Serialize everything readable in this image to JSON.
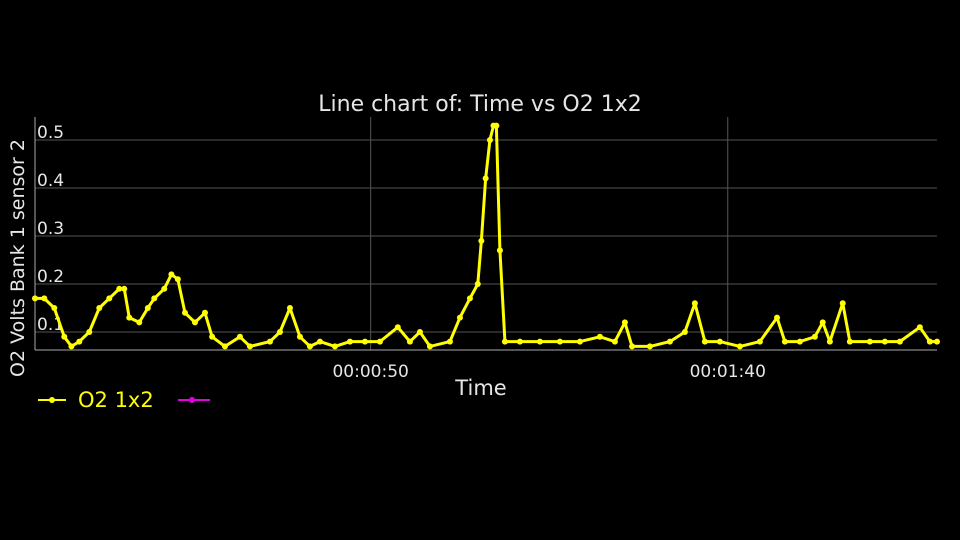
{
  "chart_data": {
    "type": "line",
    "title": "Line chart of: Time vs O2 1x2",
    "x_label": "Time",
    "y_label": "O2 Volts Bank 1 sensor 2",
    "xlim": [
      3,
      129.3
    ],
    "ylim": [
      0.0625,
      0.548
    ],
    "xticks": [
      {
        "value": 50,
        "label": "00:00:50"
      },
      {
        "value": 100,
        "label": "00:01:40"
      }
    ],
    "yticks": [
      0.1,
      0.2,
      0.3,
      0.4,
      0.5
    ],
    "grid": true,
    "x": [
      3,
      4.3,
      5.7,
      7.1,
      8.1,
      9.2,
      10.6,
      12,
      13.4,
      14.8,
      15.5,
      16.2,
      17.6,
      18.8,
      19.7,
      21.1,
      22.1,
      23,
      24,
      25.4,
      26.8,
      27.8,
      29.6,
      31.7,
      33.1,
      35.9,
      37.3,
      38.7,
      40.1,
      41.5,
      42.9,
      45,
      47.1,
      49.2,
      51.3,
      53.8,
      55.5,
      56.9,
      58.3,
      61.1,
      62.5,
      63.9,
      65,
      65.5,
      66.1,
      66.7,
      67.2,
      67.6,
      68.1,
      68.8,
      70.9,
      73.7,
      76.5,
      79.3,
      82.1,
      84.2,
      85.6,
      86.6,
      89.1,
      91.9,
      94,
      95.4,
      96.8,
      98.9,
      101.7,
      104.5,
      106.9,
      108,
      110.1,
      112.2,
      113.3,
      114.3,
      116.1,
      117.1,
      119.9,
      122,
      124.1,
      126.9,
      128.3,
      129.3
    ],
    "series": [
      {
        "name": "O2 1x2",
        "color": "#ffff00",
        "values": [
          0.17,
          0.17,
          0.15,
          0.09,
          0.07,
          0.08,
          0.1,
          0.15,
          0.17,
          0.19,
          0.19,
          0.13,
          0.12,
          0.15,
          0.17,
          0.19,
          0.22,
          0.21,
          0.14,
          0.12,
          0.14,
          0.09,
          0.07,
          0.09,
          0.07,
          0.08,
          0.1,
          0.15,
          0.09,
          0.07,
          0.08,
          0.07,
          0.08,
          0.08,
          0.08,
          0.11,
          0.08,
          0.1,
          0.07,
          0.08,
          0.13,
          0.17,
          0.2,
          0.29,
          0.42,
          0.5,
          0.53,
          0.53,
          0.27,
          0.08,
          0.08,
          0.08,
          0.08,
          0.08,
          0.09,
          0.08,
          0.12,
          0.07,
          0.07,
          0.08,
          0.1,
          0.16,
          0.08,
          0.08,
          0.07,
          0.08,
          0.13,
          0.08,
          0.08,
          0.09,
          0.12,
          0.08,
          0.16,
          0.08,
          0.08,
          0.08,
          0.08,
          0.11,
          0.08,
          0.08
        ]
      }
    ]
  }
}
